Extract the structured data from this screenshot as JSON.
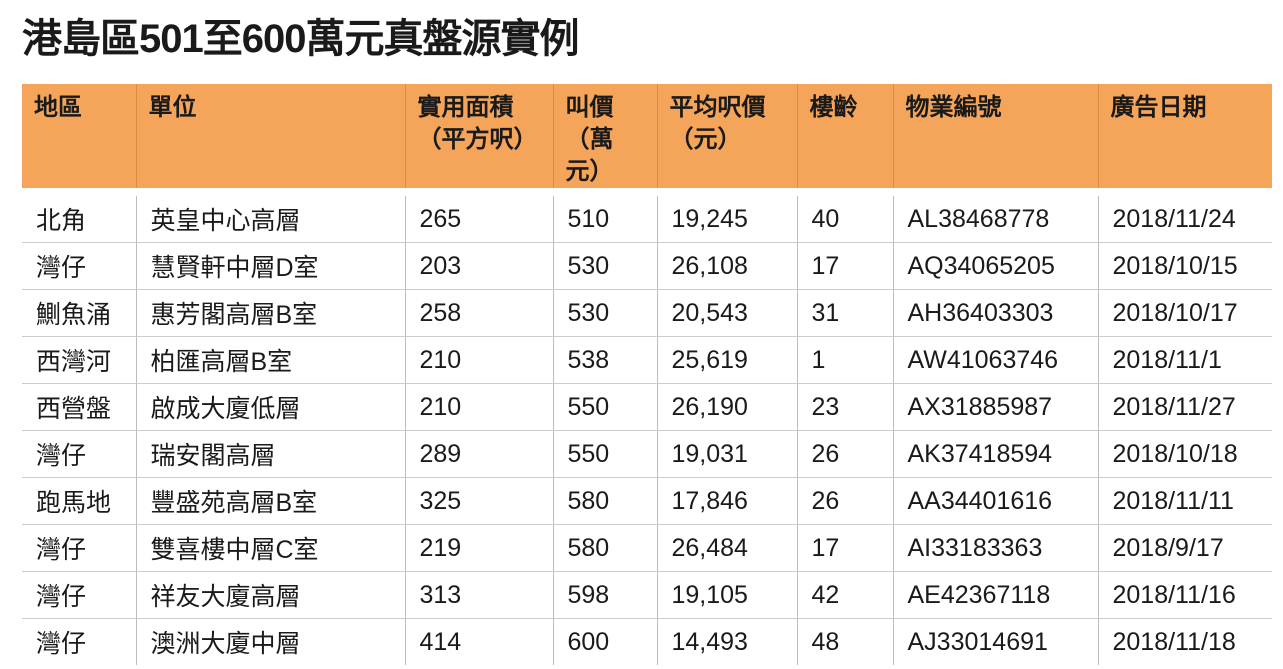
{
  "header": {
    "title": "港島區501至600萬元真盤源實例"
  },
  "table": {
    "columns": [
      [
        "地區"
      ],
      [
        "單位"
      ],
      [
        "實用面積",
        "（平方呎）"
      ],
      [
        "叫價",
        "（萬元）"
      ],
      [
        "平均呎價",
        "（元）"
      ],
      [
        "樓齡"
      ],
      [
        "物業編號"
      ],
      [
        "廣告日期"
      ]
    ],
    "rows": [
      [
        "北角",
        "英皇中心高層",
        "265",
        "510",
        "19,245",
        "40",
        "AL38468778",
        "2018/11/24"
      ],
      [
        "灣仔",
        "慧賢軒中層D室",
        "203",
        "530",
        "26,108",
        "17",
        "AQ34065205",
        "2018/10/15"
      ],
      [
        "鰂魚涌",
        "惠芳閣高層B室",
        "258",
        "530",
        "20,543",
        "31",
        "AH36403303",
        "2018/10/17"
      ],
      [
        "西灣河",
        "柏匯高層B室",
        "210",
        "538",
        "25,619",
        "1",
        "AW41063746",
        "2018/11/1"
      ],
      [
        "西營盤",
        "啟成大廈低層",
        "210",
        "550",
        "26,190",
        "23",
        "AX31885987",
        "2018/11/27"
      ],
      [
        "灣仔",
        "瑞安閣高層",
        "289",
        "550",
        "19,031",
        "26",
        "AK37418594",
        "2018/10/18"
      ],
      [
        "跑馬地",
        "豐盛苑高層B室",
        "325",
        "580",
        "17,846",
        "26",
        "AA34401616",
        "2018/11/11"
      ],
      [
        "灣仔",
        "雙喜樓中層C室",
        "219",
        "580",
        "26,484",
        "17",
        "AI33183363",
        "2018/9/17"
      ],
      [
        "灣仔",
        "祥友大廈高層",
        "313",
        "598",
        "19,105",
        "42",
        "AE42367118",
        "2018/11/16"
      ],
      [
        "灣仔",
        "澳洲大廈中層",
        "414",
        "600",
        "14,493",
        "48",
        "AJ33014691",
        "2018/11/18"
      ]
    ]
  }
}
